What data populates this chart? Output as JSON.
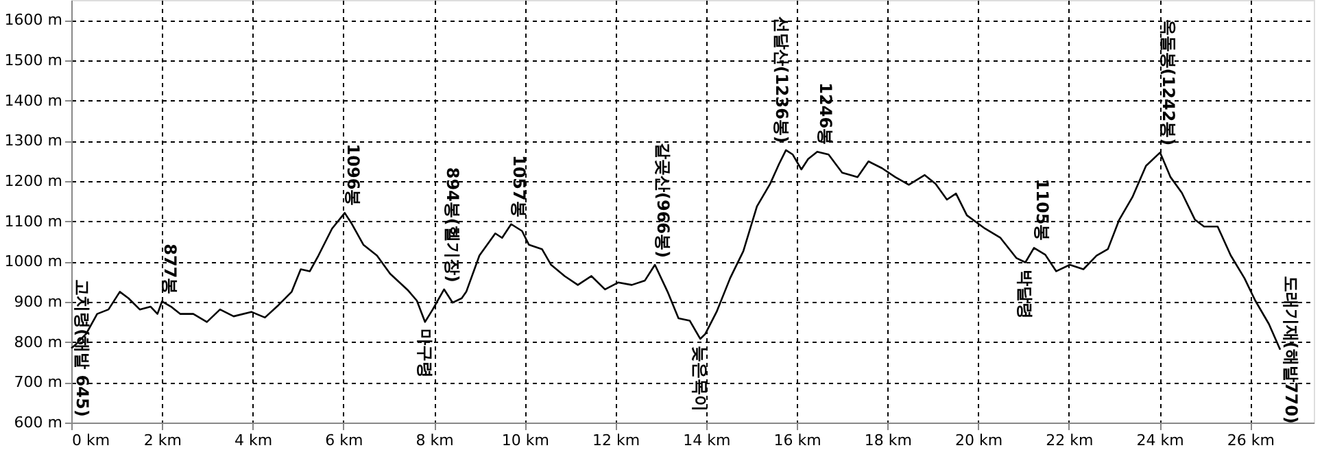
{
  "chart_data": {
    "type": "line",
    "xlim": [
      0,
      27.4
    ],
    "ylim": [
      600,
      1650
    ],
    "xticks": [
      {
        "value": 0,
        "label": "0 km"
      },
      {
        "value": 2,
        "label": "2 km"
      },
      {
        "value": 4,
        "label": "4 km"
      },
      {
        "value": 6,
        "label": "6 km"
      },
      {
        "value": 8,
        "label": "8 km"
      },
      {
        "value": 10,
        "label": "10 km"
      },
      {
        "value": 12,
        "label": "12 km"
      },
      {
        "value": 14,
        "label": "14 km"
      },
      {
        "value": 16,
        "label": "16 km"
      },
      {
        "value": 18,
        "label": "18 km"
      },
      {
        "value": 20,
        "label": "20 km"
      },
      {
        "value": 22,
        "label": "22 km"
      },
      {
        "value": 24,
        "label": "24 km"
      },
      {
        "value": 26,
        "label": "26 km"
      }
    ],
    "yticks": [
      {
        "value": 600,
        "label": "600 m"
      },
      {
        "value": 700,
        "label": "700 m"
      },
      {
        "value": 800,
        "label": "800 m"
      },
      {
        "value": 900,
        "label": "900 m"
      },
      {
        "value": 1000,
        "label": "1000 m"
      },
      {
        "value": 1100,
        "label": "1100 m"
      },
      {
        "value": 1200,
        "label": "1200 m"
      },
      {
        "value": 1300,
        "label": "1300 m"
      },
      {
        "value": 1400,
        "label": "1400 m"
      },
      {
        "value": 1500,
        "label": "1500 m"
      },
      {
        "value": 1600,
        "label": "1600 m"
      }
    ],
    "grid": true,
    "line_style": "solid",
    "marker": "none",
    "series": [
      {
        "color": "#000000",
        "x": [
          0,
          0.08,
          0.33,
          0.57,
          0.82,
          1.07,
          1.26,
          1.51,
          1.75,
          1.9,
          2.0,
          2.2,
          2.4,
          2.69,
          2.99,
          3.28,
          3.58,
          3.97,
          4.27,
          4.57,
          4.86,
          5.06,
          5.26,
          5.45,
          5.75,
          6.03,
          6.19,
          6.44,
          6.74,
          7.03,
          7.43,
          7.62,
          7.8,
          7.97,
          8.22,
          8.41,
          8.61,
          8.71,
          9.0,
          9.35,
          9.5,
          9.7,
          9.94,
          10.09,
          10.38,
          10.58,
          10.88,
          11.17,
          11.47,
          11.77,
          12.06,
          12.36,
          12.65,
          12.87,
          13.15,
          13.39,
          13.64,
          13.87,
          13.98,
          14.23,
          14.53,
          14.82,
          15.12,
          15.41,
          15.61,
          15.76,
          15.91,
          16.1,
          16.25,
          16.45,
          16.7,
          17.0,
          17.34,
          17.58,
          17.88,
          18.17,
          18.47,
          18.82,
          19.06,
          19.31,
          19.51,
          19.75,
          20.15,
          20.49,
          20.84,
          21.04,
          21.23,
          21.48,
          21.72,
          22.02,
          22.32,
          22.61,
          22.86,
          23.11,
          23.4,
          23.7,
          24.01,
          24.24,
          24.49,
          24.78,
          24.98,
          25.28,
          25.57,
          25.87,
          26.11,
          26.41,
          26.66
        ],
        "values": [
          785,
          792,
          821,
          870,
          881,
          925,
          909,
          881,
          888,
          870,
          901,
          888,
          870,
          870,
          850,
          881,
          864,
          875,
          861,
          892,
          925,
          981,
          976,
          1015,
          1082,
          1121,
          1093,
          1042,
          1015,
          970,
          928,
          903,
          850,
          881,
          931,
          898,
          909,
          925,
          1015,
          1070,
          1059,
          1093,
          1076,
          1042,
          1031,
          992,
          964,
          942,
          964,
          931,
          948,
          942,
          953,
          992,
          925,
          859,
          853,
          808,
          820,
          875,
          959,
          1026,
          1137,
          1193,
          1243,
          1277,
          1266,
          1229,
          1255,
          1273,
          1266,
          1221,
          1210,
          1249,
          1232,
          1210,
          1191,
          1215,
          1193,
          1154,
          1169,
          1115,
          1082,
          1059,
          1009,
          998,
          1034,
          1017,
          976,
          992,
          981,
          1015,
          1031,
          1104,
          1160,
          1238,
          1271,
          1210,
          1171,
          1104,
          1087,
          1087,
          1015,
          959,
          903,
          845,
          781
        ]
      }
    ],
    "annotations": [
      {
        "text": "고치령(해발 645)",
        "x": 0,
        "y": 785
      },
      {
        "text": "877봉",
        "x": 2.0,
        "y": 901
      },
      {
        "text": "1096봉",
        "x": 6.03,
        "y": 1121
      },
      {
        "text": "894봉(헬기장)",
        "x": 8.22,
        "y": 931
      },
      {
        "text": "마구령",
        "x": 7.8,
        "y": 850
      },
      {
        "text": "1057봉",
        "x": 9.7,
        "y": 1093
      },
      {
        "text": "갈곶산(966봉)",
        "x": 12.87,
        "y": 992
      },
      {
        "text": "늦은목이",
        "x": 13.87,
        "y": 808
      },
      {
        "text": "선달산(1236봉)",
        "x": 15.76,
        "y": 1277
      },
      {
        "text": "1246봉",
        "x": 16.45,
        "y": 1273
      },
      {
        "text": "1105봉",
        "x": 21.23,
        "y": 1034
      },
      {
        "text": "박달령",
        "x": 21.04,
        "y": 998
      },
      {
        "text": "옥돌봉(1242봉)",
        "x": 24.01,
        "y": 1271
      },
      {
        "text": "도래기재(해발770)",
        "x": 26.66,
        "y": 781
      }
    ]
  }
}
